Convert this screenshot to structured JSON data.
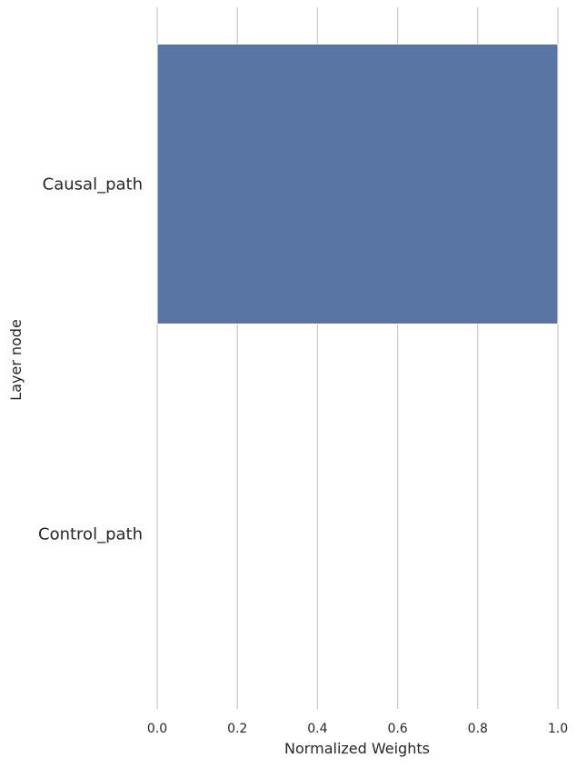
{
  "chart_data": {
    "type": "bar",
    "orientation": "horizontal",
    "title": "",
    "xlabel": "Normalized Weights",
    "ylabel": "Layer node",
    "categories": [
      "Causal_path",
      "Control_path"
    ],
    "values": [
      1.0,
      0.0
    ],
    "xlim": [
      0.0,
      1.0
    ],
    "xticks": [
      "0.0",
      "0.2",
      "0.4",
      "0.6",
      "0.8",
      "1.0"
    ],
    "grid": "vertical",
    "colors": {
      "bar": "#5975a4",
      "grid": "#cccccc",
      "text": "#262626"
    }
  }
}
